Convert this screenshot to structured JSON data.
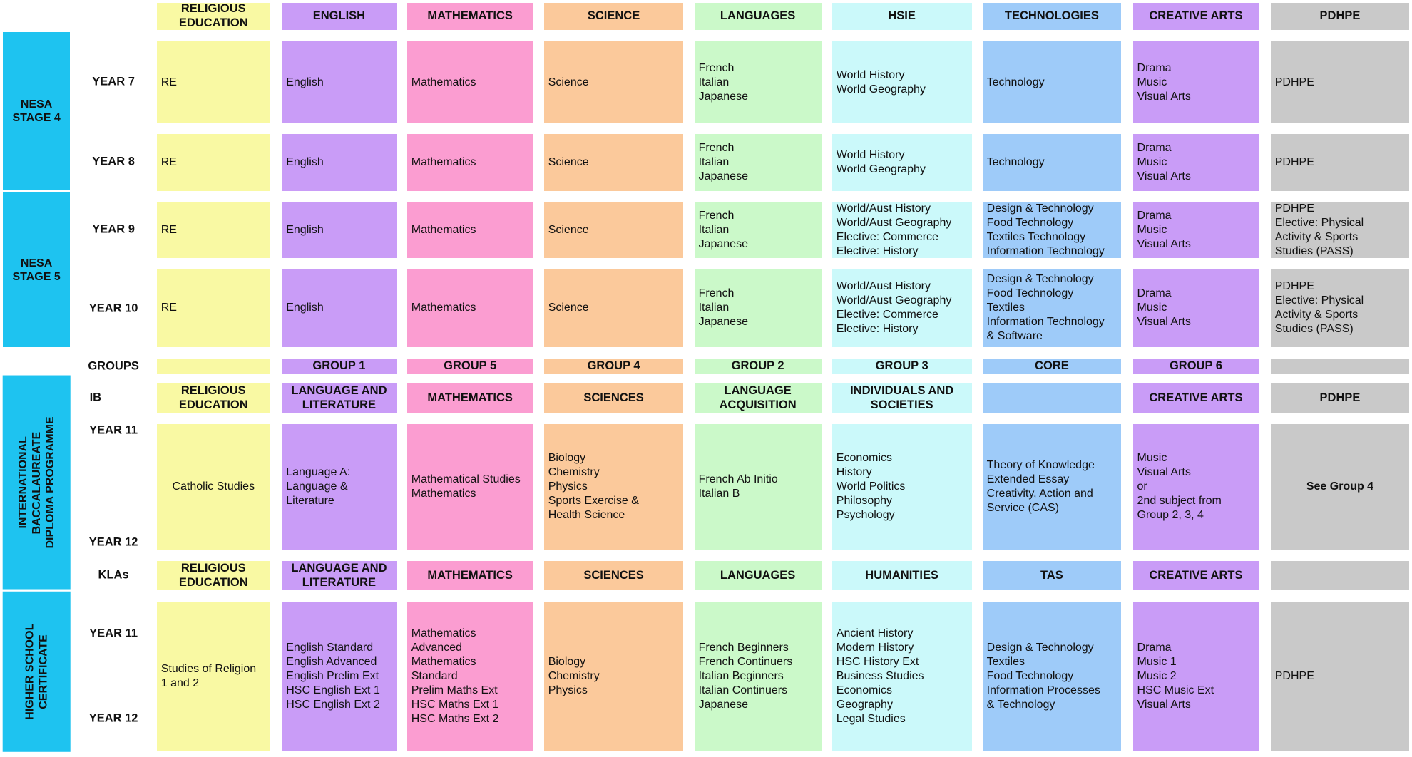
{
  "stages": [
    [
      "NESA",
      "STAGE 4"
    ],
    [
      "NESA",
      "STAGE 5"
    ],
    [
      "INTERNATIONAL",
      "BACCALAUREATE",
      "DIPLOMA PROGRAMME"
    ],
    [
      "HIGHER SCHOOL",
      "CERTIFICATE"
    ]
  ],
  "rows": [
    {
      "labels": [],
      "cells": [
        [
          "RELIGIOUS",
          "EDUCATION"
        ],
        [
          "ENGLISH"
        ],
        [
          "MATHEMATICS"
        ],
        [
          "SCIENCE"
        ],
        [
          "LANGUAGES"
        ],
        [
          "HSIE"
        ],
        [
          "TECHNOLOGIES"
        ],
        [
          "CREATIVE ARTS"
        ],
        [
          "PDHPE"
        ]
      ]
    },
    {
      "labels": [
        "YEAR 7"
      ],
      "cells": [
        [
          "RE"
        ],
        [
          "English"
        ],
        [
          "Mathematics"
        ],
        [
          "Science"
        ],
        [
          "French",
          "Italian",
          "Japanese"
        ],
        [
          "World History",
          "World Geography"
        ],
        [
          "Technology"
        ],
        [
          "Drama",
          "Music",
          "Visual Arts"
        ],
        [
          "PDHPE"
        ]
      ]
    },
    {
      "labels": [
        "YEAR 8"
      ],
      "cells": [
        [
          "RE"
        ],
        [
          "English"
        ],
        [
          "Mathematics"
        ],
        [
          "Science"
        ],
        [
          "French",
          "Italian",
          "Japanese"
        ],
        [
          "World History",
          "World Geography"
        ],
        [
          "Technology"
        ],
        [
          "Drama",
          "Music",
          "Visual Arts"
        ],
        [
          "PDHPE"
        ]
      ]
    },
    {
      "labels": [
        "YEAR 9"
      ],
      "cells": [
        [
          "RE"
        ],
        [
          "English"
        ],
        [
          "Mathematics"
        ],
        [
          "Science"
        ],
        [
          "French",
          "Italian",
          "Japanese"
        ],
        [
          "World/Aust History",
          "World/Aust Geography",
          "Elective: Commerce",
          "Elective: History"
        ],
        [
          "Design & Technology",
          "Food Technology",
          "Textiles Technology",
          "Information Technology"
        ],
        [
          "Drama",
          "Music",
          "Visual Arts"
        ],
        [
          "PDHPE",
          "Elective: Physical",
          "Activity & Sports",
          "Studies (PASS)"
        ]
      ]
    },
    {
      "labels": [
        "YEAR 10"
      ],
      "cells": [
        [
          "RE"
        ],
        [
          "English"
        ],
        [
          "Mathematics"
        ],
        [
          "Science"
        ],
        [
          "French",
          "Italian",
          "Japanese"
        ],
        [
          "World/Aust History",
          "World/Aust Geography",
          "Elective: Commerce",
          "Elective: History"
        ],
        [
          "Design & Technology",
          "Food Technology",
          "Textiles",
          "Information Technology",
          "& Software"
        ],
        [
          "Drama",
          "Music",
          "Visual Arts"
        ],
        [
          "PDHPE",
          "Elective: Physical",
          "Activity & Sports",
          "Studies (PASS)"
        ]
      ]
    },
    {
      "labels": [
        "GROUPS"
      ],
      "cells": [
        [],
        [
          "GROUP 1"
        ],
        [
          "GROUP 5"
        ],
        [
          "GROUP 4"
        ],
        [
          "GROUP 2"
        ],
        [
          "GROUP 3"
        ],
        [
          "CORE"
        ],
        [
          "GROUP 6"
        ],
        []
      ]
    },
    {
      "labels": [
        "IB"
      ],
      "cells": [
        [
          "RELIGIOUS",
          "EDUCATION"
        ],
        [
          "LANGUAGE AND",
          "LITERATURE"
        ],
        [
          "MATHEMATICS"
        ],
        [
          "SCIENCES"
        ],
        [
          "LANGUAGE",
          "ACQUISITION"
        ],
        [
          "INDIVIDUALS AND",
          "SOCIETIES"
        ],
        [],
        [
          "CREATIVE ARTS"
        ],
        [
          "PDHPE"
        ]
      ]
    },
    {
      "labels": [
        "YEAR 11",
        "YEAR 12"
      ],
      "cells": [
        [
          "Catholic Studies"
        ],
        [
          "Language  A:",
          "Language &",
          "Literature"
        ],
        [
          "Mathematical Studies",
          "Mathematics"
        ],
        [
          "Biology",
          "Chemistry",
          "Physics",
          "Sports Exercise &",
          "Health Science"
        ],
        [
          "French Ab Initio",
          "Italian B"
        ],
        [
          "Economics",
          "History",
          "World Politics",
          "Philosophy",
          "Psychology"
        ],
        [
          "Theory of Knowledge",
          "Extended Essay",
          "Creativity, Action and",
          "Service (CAS)"
        ],
        [
          "Music",
          "Visual Arts",
          "or",
          "2nd subject from",
          "Group 2, 3, 4"
        ],
        [
          "See Group 4"
        ]
      ]
    },
    {
      "labels": [
        "KLAs"
      ],
      "cells": [
        [
          "RELIGIOUS",
          "EDUCATION"
        ],
        [
          "LANGUAGE AND",
          "LITERATURE"
        ],
        [
          "MATHEMATICS"
        ],
        [
          "SCIENCES"
        ],
        [
          "LANGUAGES"
        ],
        [
          "HUMANITIES"
        ],
        [
          "TAS"
        ],
        [
          "CREATIVE ARTS"
        ],
        []
      ]
    },
    {
      "labels": [
        "YEAR 11",
        "YEAR 12"
      ],
      "cells": [
        [
          "Studies of Religion",
          "1 and 2"
        ],
        [
          "English Standard",
          "English Advanced",
          "English Prelim Ext",
          "HSC English Ext 1",
          "HSC English Ext 2"
        ],
        [
          "Mathematics",
          "Advanced",
          "Mathematics",
          "Standard",
          "Prelim Maths Ext",
          "HSC Maths Ext 1",
          "HSC Maths Ext 2"
        ],
        [
          "Biology",
          "Chemistry",
          "Physics"
        ],
        [
          "French Beginners",
          "French Continuers",
          "Italian Beginners",
          "Italian Continuers",
          "Japanese"
        ],
        [
          "Ancient History",
          "Modern History",
          "HSC History Ext",
          "Business Studies",
          "Economics",
          "Geography",
          "Legal Studies"
        ],
        [
          "Design & Technology",
          "Textiles",
          "Food Technology",
          "Information Processes",
          "& Technology"
        ],
        [
          "Drama",
          "Music 1",
          "Music 2",
          "HSC Music Ext",
          "Visual Arts"
        ],
        [
          "PDHPE"
        ]
      ]
    }
  ]
}
